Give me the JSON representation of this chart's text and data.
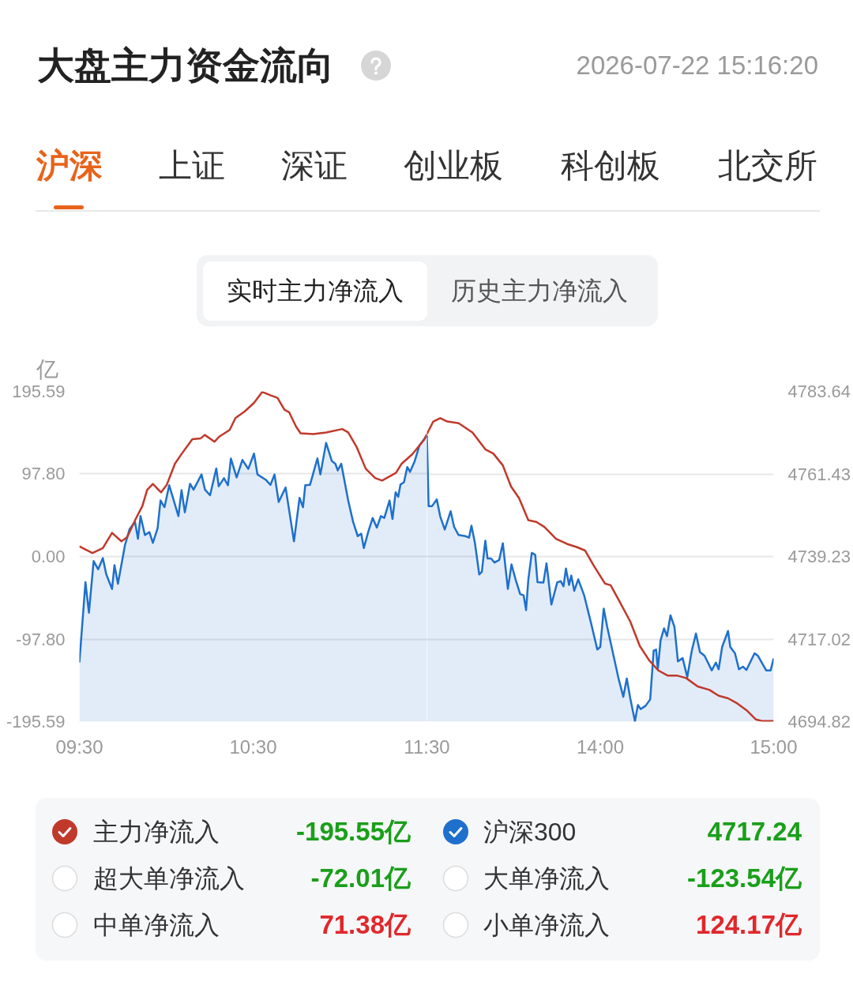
{
  "chart_data": [
    {
      "type": "line",
      "title": "大盘主力资金流向",
      "ylabel": "亿",
      "xlim": [
        9.5,
        11.5
      ],
      "xticks": [
        {
          "value": 9.5,
          "label": "09:30"
        },
        {
          "value": 10.5,
          "label": "10:30"
        },
        {
          "value": 11.5,
          "label": "11:30"
        }
      ],
      "ylim": [
        -195.59,
        195.59
      ],
      "yticks": [
        -195.59,
        {
          "value": -97.8,
          "label": "-97.80"
        },
        {
          "value": 0,
          "label": "0.00"
        },
        {
          "value": 97.8,
          "label": "97.80"
        },
        195.59
      ],
      "y2lim": [
        4694.82,
        4783.64
      ],
      "tick_labels": "xy",
      "grid": "y",
      "legend": "bottom",
      "series": [
        {
          "name": "主力净流入",
          "color": "#c0392b",
          "x": [
            9.5,
            9.575,
            9.635,
            9.688,
            9.742,
            9.775,
            9.823,
            9.863,
            9.89,
            9.923,
            9.97,
            10.003,
            10.05,
            10.09,
            10.15,
            10.198,
            10.222,
            10.278,
            10.305,
            10.365,
            10.398,
            10.452,
            10.505,
            10.552,
            10.6,
            10.64,
            10.68,
            10.707,
            10.747,
            10.773,
            10.847,
            10.92,
            11.013,
            11.047,
            11.095,
            11.148,
            11.202,
            11.242,
            11.322,
            11.355,
            11.415,
            11.483,
            11.5
          ],
          "values": [
            12,
            4,
            10,
            28,
            18,
            23,
            44,
            60,
            79,
            86,
            76,
            85,
            110,
            122,
            139,
            140,
            144,
            136,
            142,
            150,
            164,
            172,
            182,
            195,
            191,
            188,
            174,
            171,
            154,
            146,
            145,
            147,
            151,
            147,
            130,
            104,
            93,
            90,
            99,
            110,
            121,
            138,
            145
          ]
        },
        {
          "name": "沪深300",
          "type": "area",
          "axis": "y2",
          "color": "#1e70cc",
          "x": [
            9.5,
            9.535,
            9.555,
            9.582,
            9.608,
            9.635,
            9.655,
            9.688,
            9.702,
            9.722,
            9.762,
            9.788,
            9.82,
            9.837,
            9.852,
            9.877,
            9.903,
            9.923,
            9.95,
            9.967,
            9.99,
            10.017,
            10.07,
            10.088,
            10.107,
            10.137,
            10.157,
            10.203,
            10.223,
            10.252,
            10.288,
            10.302,
            10.332,
            10.355,
            10.372,
            10.405,
            10.438,
            10.472,
            10.505,
            10.525,
            10.572,
            10.6,
            10.623,
            10.647,
            10.687,
            10.735,
            10.767,
            10.787,
            10.8,
            10.827,
            10.84,
            10.87,
            10.887,
            10.92,
            10.953,
            10.973,
            10.987,
            11.007,
            11.047,
            11.075,
            11.102,
            11.122,
            11.137,
            11.162,
            11.188,
            11.212,
            11.235,
            11.255,
            11.285,
            11.302,
            11.32,
            11.335,
            11.348,
            11.368,
            11.387,
            11.403,
            11.43,
            11.457,
            11.5
          ],
          "values": [
            4710.7,
            4732.3,
            4724.1,
            4738.0,
            4735.8,
            4738.8,
            4734.4,
            4730.5,
            4736.9,
            4731.9,
            4742.2,
            4746.5,
            4748.6,
            4744.0,
            4750.1,
            4745.0,
            4745.8,
            4742.9,
            4746.8,
            4754.3,
            4752.5,
            4758.4,
            4750.1,
            4757.1,
            4751.1,
            4758.8,
            4757.2,
            4761.3,
            4757.2,
            4755.7,
            4762.9,
            4758.1,
            4760.3,
            4758.4,
            4765.6,
            4760.5,
            4765.2,
            4762.8,
            4766.9,
            4761.3,
            4759.9,
            4758.5,
            4761.3,
            4753.9,
            4757.8,
            4743.3,
            4755.0,
            4752.5,
            4758.4,
            4758.5,
            4760.6,
            4765.6,
            4761.3,
            4769.8,
            4764.9,
            4764.2,
            4762.4,
            4764.2,
            4754.3,
            4748.6,
            4744.7,
            4745.4,
            4741.5,
            4745.8,
            4749.6,
            4747.0,
            4750.1,
            4749.6,
            4754.3,
            4749.3,
            4756.5,
            4755.3,
            4758.6,
            4759.2,
            4763.3,
            4762.0,
            4764.9,
            4769.1,
            4771.8
          ]
        }
      ],
      "annotations": [
        "2026-07-22 15:16:20",
        "沪深",
        "上证",
        "深证",
        "创业板",
        "科创板",
        "北交所",
        "实时主力净流入",
        "历史主力净流入",
        "-195.55亿",
        "4717.24",
        "超大单净流入",
        "-72.01亿",
        "大单净流入",
        "-123.54亿",
        "中单净流入",
        "71.38亿",
        "小单净流入",
        "124.17亿"
      ]
    },
    {
      "type": "line",
      "xlim": [
        13,
        15
      ],
      "xticks": [
        {
          "value": 14,
          "label": "14:00"
        },
        {
          "value": 15,
          "label": "15:00"
        }
      ],
      "ylim": [
        -195.59,
        195.59
      ],
      "y2lim": [
        4694.82,
        4783.64
      ],
      "y2ticks": [
        4694.82,
        4717.02,
        4739.23,
        4761.43,
        4783.64
      ],
      "tick_labels": "xy2",
      "grid": "y",
      "series": [
        {
          "color": "#c0392b",
          "x": [
            13,
            13.037,
            13.077,
            13.117,
            13.183,
            13.263,
            13.337,
            13.383,
            13.438,
            13.485,
            13.532,
            13.585,
            13.632,
            13.678,
            13.745,
            13.807,
            13.867,
            13.913,
            13.96,
            14.027,
            14.06,
            14.113,
            14.173,
            14.228,
            14.282,
            14.335,
            14.388,
            14.442,
            14.495,
            14.562,
            14.63,
            14.683,
            14.737,
            14.79,
            14.843,
            14.897,
            14.937,
            15
          ],
          "values": [
            145,
            160,
            164,
            160,
            158,
            147,
            127,
            122,
            108,
            83,
            69,
            43,
            41,
            35,
            21,
            15,
            11,
            7,
            -10,
            -32,
            -34,
            -54,
            -77,
            -106,
            -123,
            -135,
            -141,
            -141,
            -144,
            -154,
            -158,
            -165,
            -168,
            -174,
            -182,
            -193,
            -195,
            -195
          ]
        },
        {
          "type": "area",
          "axis": "y2",
          "color": "#1e70cc",
          "x": [
            13,
            13.01,
            13.03,
            13.057,
            13.077,
            13.103,
            13.137,
            13.157,
            13.183,
            13.223,
            13.243,
            13.257,
            13.277,
            13.302,
            13.317,
            13.337,
            13.35,
            13.37,
            13.39,
            13.417,
            13.438,
            13.467,
            13.488,
            13.512,
            13.538,
            13.558,
            13.572,
            13.585,
            13.605,
            13.625,
            13.638,
            13.672,
            13.69,
            13.718,
            13.752,
            13.772,
            13.788,
            13.802,
            13.82,
            13.833,
            13.85,
            13.873,
            13.907,
            13.947,
            13.983,
            14,
            14.02,
            14.04,
            14.08,
            14.107,
            14.133,
            14.153,
            14.173,
            14.2,
            14.217,
            14.233,
            14.262,
            14.288,
            14.308,
            14.322,
            14.332,
            14.348,
            14.368,
            14.385,
            14.405,
            14.428,
            14.448,
            14.475,
            14.502,
            14.528,
            14.552,
            14.575,
            14.602,
            14.643,
            14.667,
            14.683,
            14.703,
            14.737,
            14.75,
            14.777,
            14.8,
            14.823,
            14.843,
            14.89,
            14.91,
            14.957,
            14.983,
            15
          ],
          "values": [
            4771.8,
            4752.8,
            4752.8,
            4754.6,
            4750.0,
            4746.5,
            4751.4,
            4747.2,
            4745.0,
            4744.7,
            4744.3,
            4747.5,
            4742.9,
            4734.4,
            4735.1,
            4743.5,
            4738.7,
            4738.7,
            4737.6,
            4738.3,
            4742.8,
            4730.5,
            4737.1,
            4733.0,
            4729.1,
            4728.8,
            4724.8,
            4733.0,
            4740.2,
            4739.7,
            4732.3,
            4732.2,
            4737.4,
            4726.3,
            4732.3,
            4732.6,
            4731.2,
            4736.0,
            4731.6,
            4734.1,
            4730.0,
            4733.1,
            4728.8,
            4721.3,
            4714.2,
            4714.9,
            4725.2,
            4720.3,
            4711.8,
            4706.1,
            4701.5,
            4706.4,
            4701.1,
            4694.9,
            4699.3,
            4698.2,
            4699.1,
            4700.8,
            4713.9,
            4714.2,
            4708.9,
            4716.7,
            4719.9,
            4717.8,
            4723.4,
            4720.3,
            4711.0,
            4711.9,
            4706.8,
            4713.9,
            4718.5,
            4713.5,
            4712.5,
            4708.6,
            4710.7,
            4708.9,
            4714.9,
            4719.2,
            4714.9,
            4713.2,
            4708.9,
            4709.6,
            4708.7,
            4713.2,
            4712.5,
            4708.6,
            4708.6,
            4711.8
          ]
        }
      ]
    }
  ]
}
